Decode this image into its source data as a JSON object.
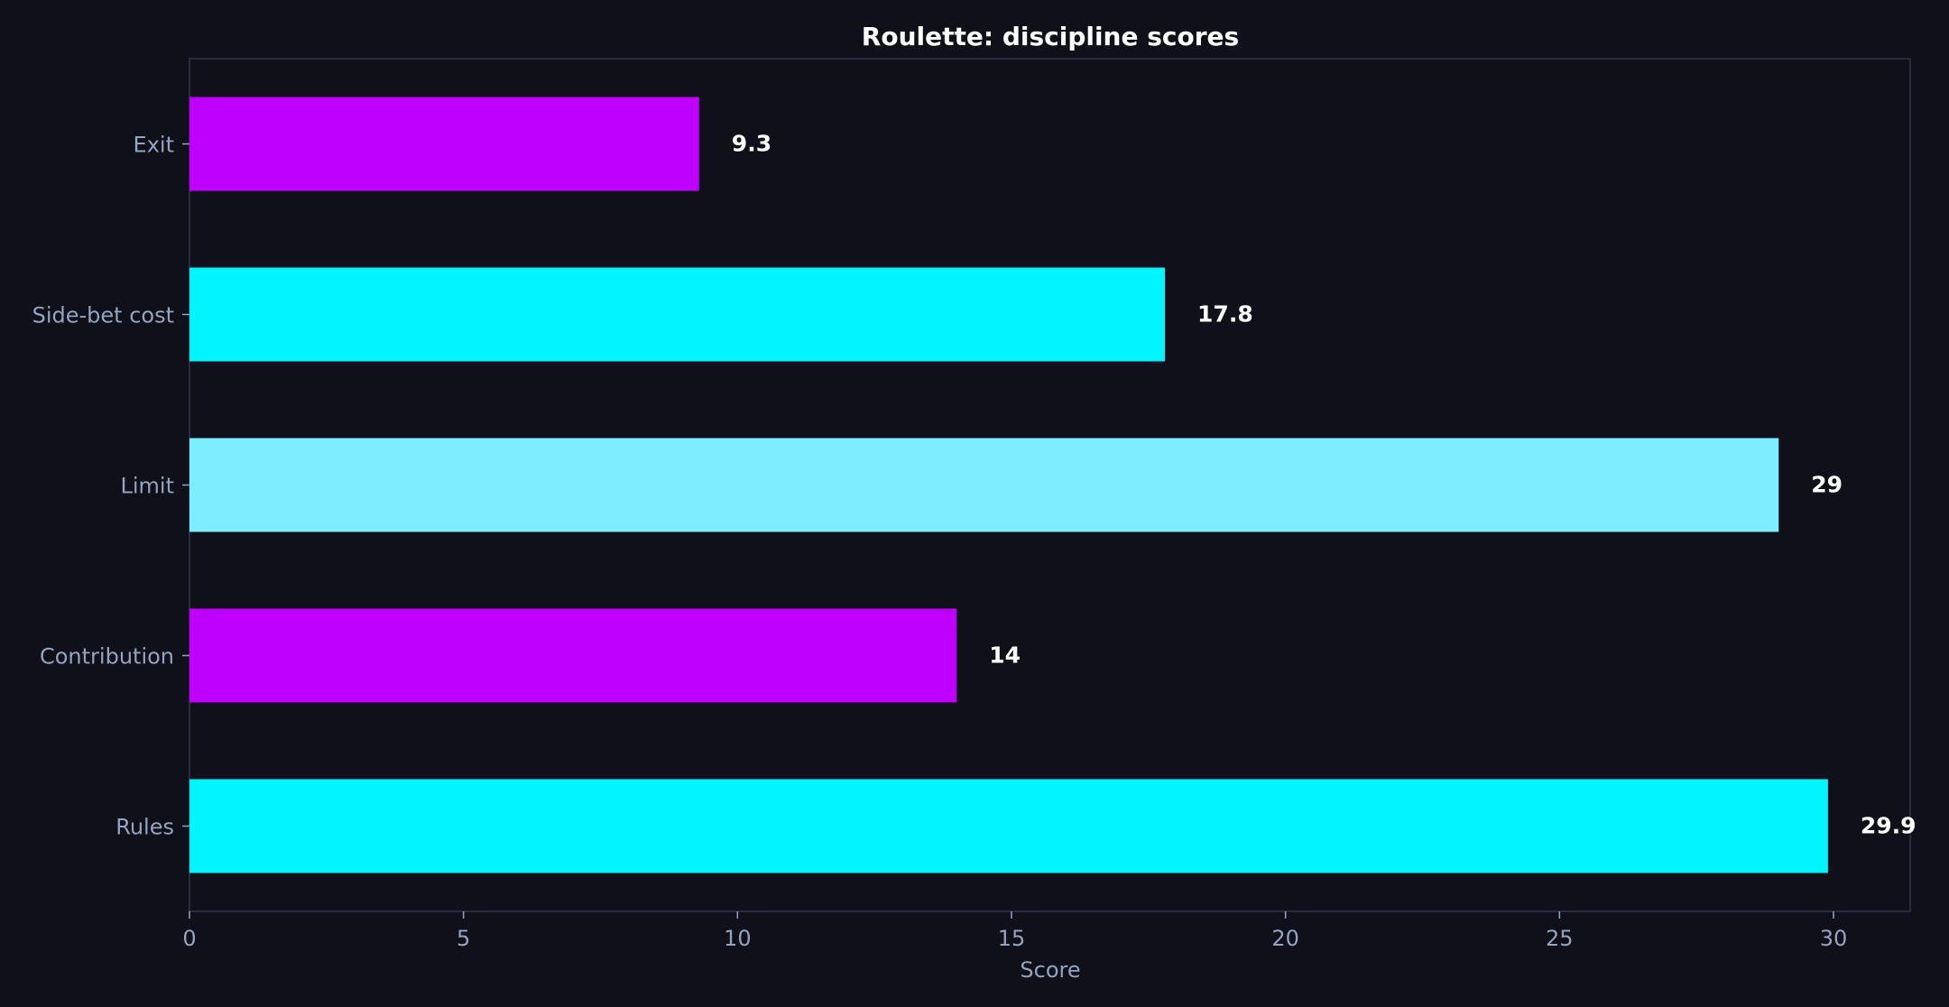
{
  "colors": {
    "background": "#0f101a",
    "frame": "#33344d",
    "title": "#ffffff",
    "tick_label": "#93a4bf",
    "value_label": "#ffffff"
  },
  "chart_data": {
    "type": "bar",
    "orientation": "horizontal",
    "title": "Roulette: discipline scores",
    "xlabel": "Score",
    "ylabel": "",
    "categories": [
      "Rules",
      "Contribution",
      "Limit",
      "Side-bet cost",
      "Exit"
    ],
    "values": [
      29.9,
      14,
      29,
      17.8,
      9.3
    ],
    "value_labels": [
      "29.9",
      "14",
      "29",
      "17.8",
      "9.3"
    ],
    "bar_colors": [
      "#00f5ff",
      "#bf00ff",
      "#7deeff",
      "#00f5ff",
      "#bf00ff"
    ],
    "xlim": [
      0,
      31.4
    ],
    "xticks": [
      0,
      5,
      10,
      15,
      20,
      25,
      30
    ],
    "xtick_labels": [
      "0",
      "5",
      "10",
      "15",
      "20",
      "25",
      "30"
    ],
    "grid": false,
    "legend": "none"
  }
}
